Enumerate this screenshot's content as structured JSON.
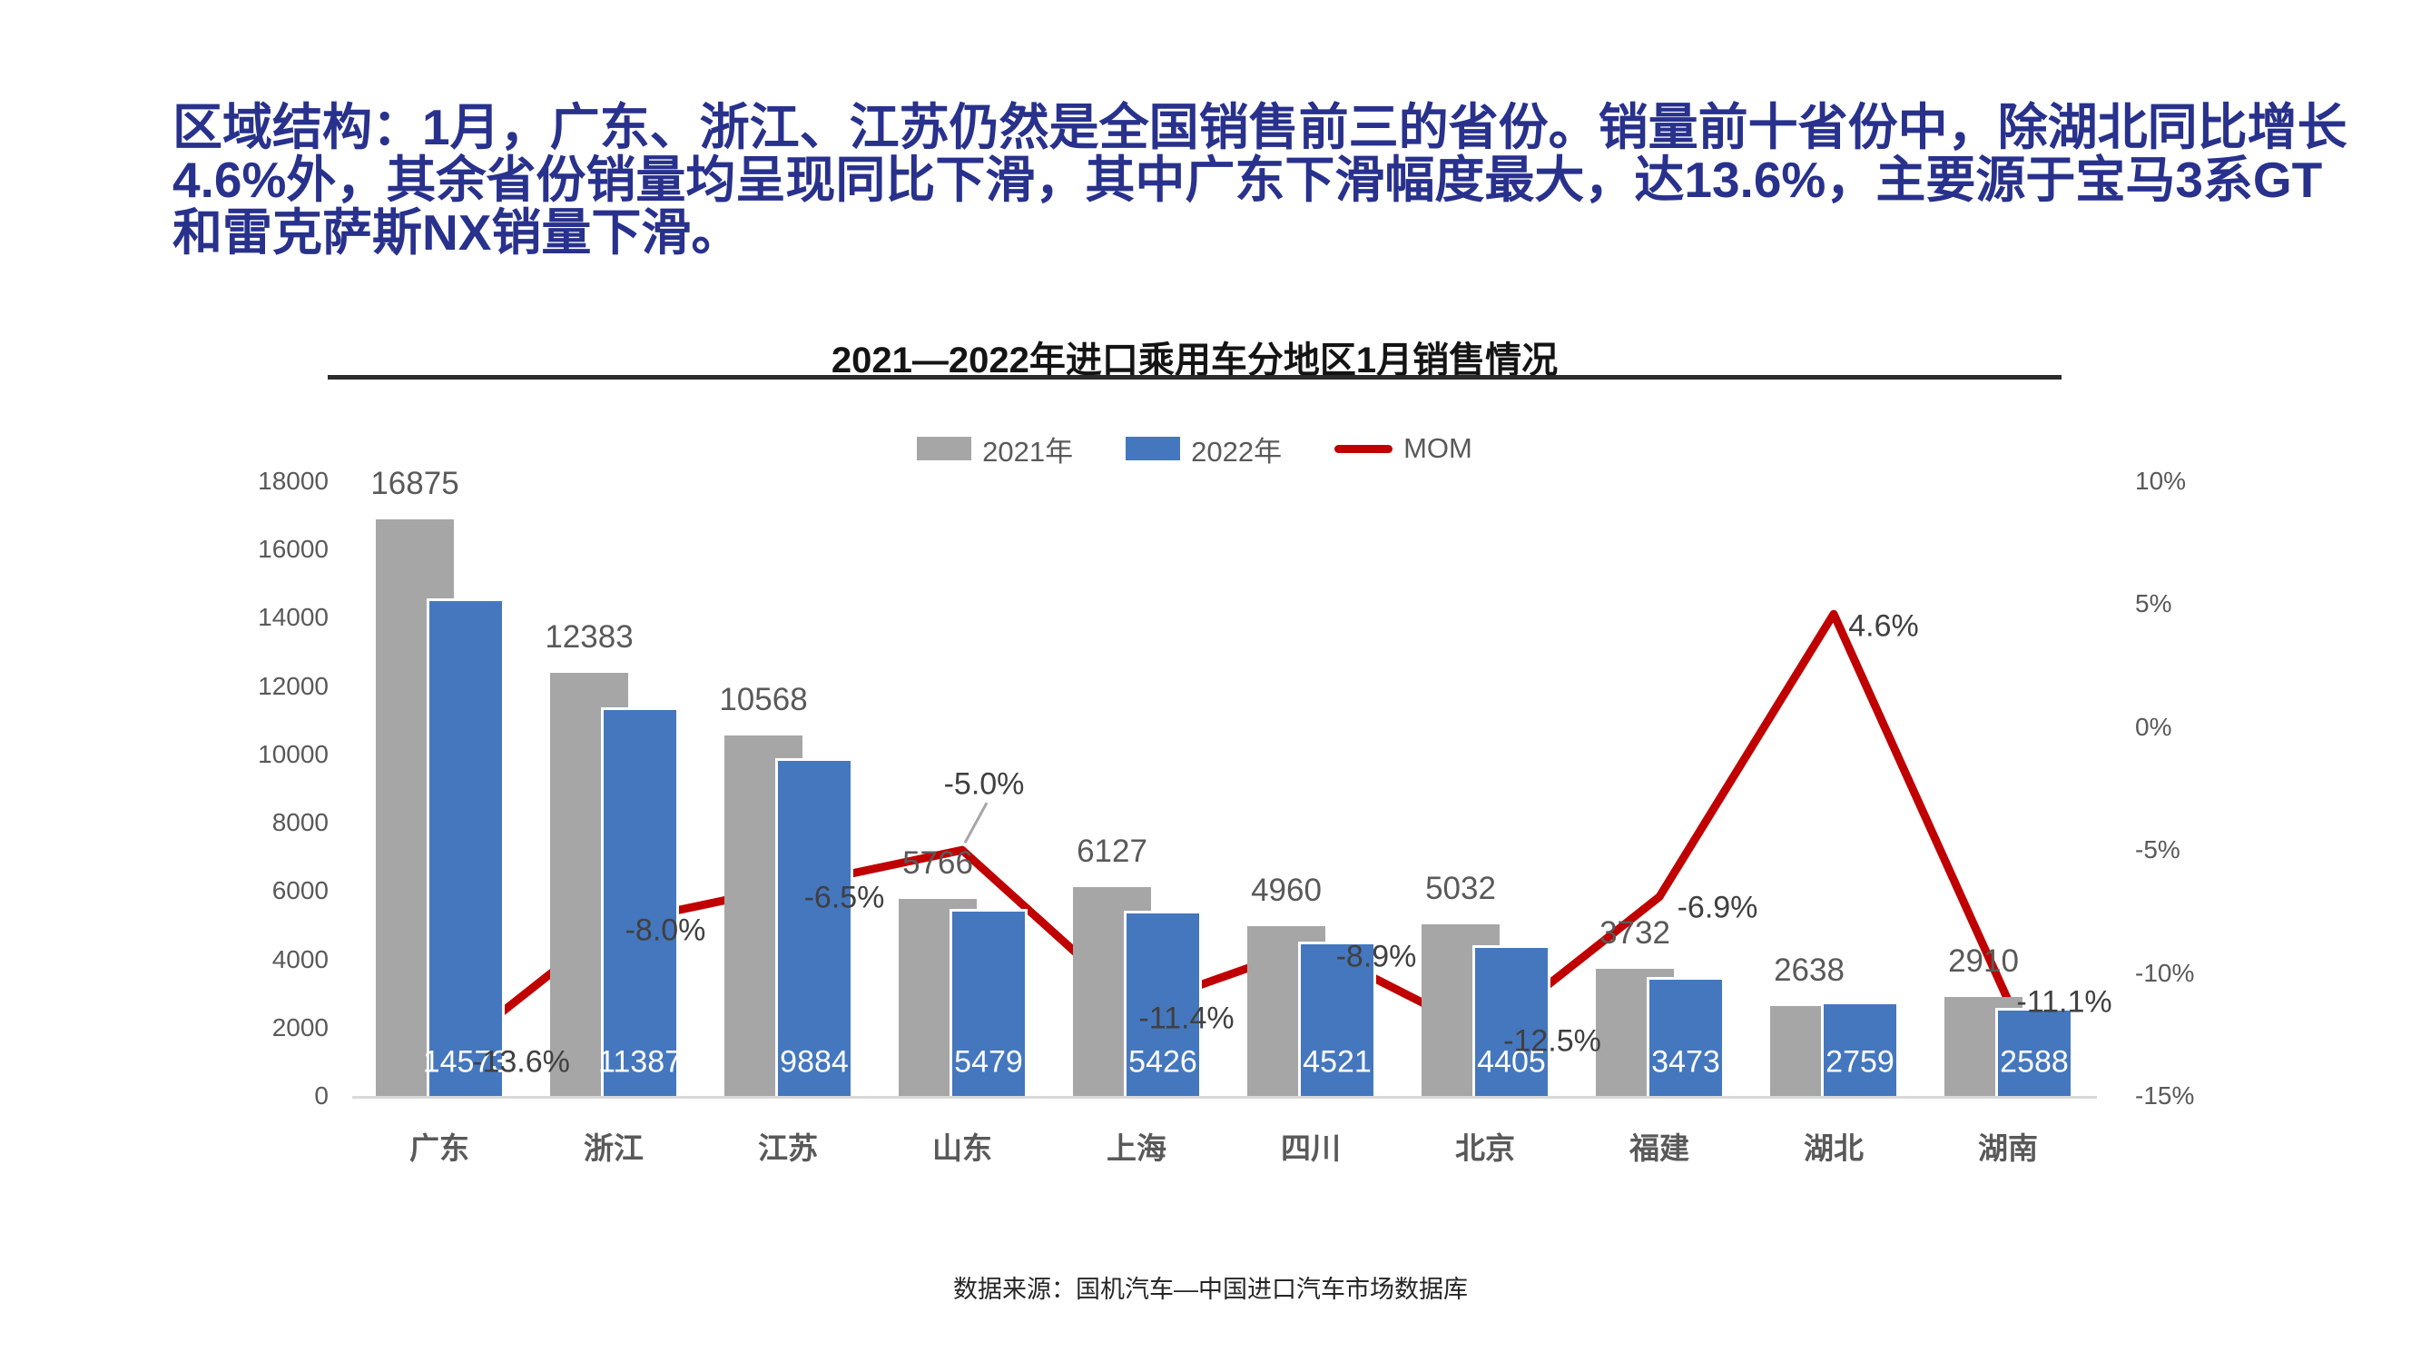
{
  "page": {
    "summary": "区域结构：1月，广东、浙江、江苏仍然是全国销售前三的省份。销量前十省份中，除湖北同比增长4.6%外，其余省份销量均呈现同比下滑，其中广东下滑幅度最大，达13.6%，主要源于宝马3系GT和雷克萨斯NX销量下滑。",
    "source_note": "数据来源：国机汽车—中国进口汽车市场数据库",
    "colors": {
      "heading_text": "#28318c",
      "bar_2021": "#a6a6a6",
      "bar_2022": "#4577be",
      "mom_line": "#c00000",
      "axis_text": "#595959",
      "mom_label_text": "#404040",
      "bar_label_white": "#ffffff",
      "axis_line": "#d9d9d9"
    }
  },
  "chart_data": {
    "type": "bar",
    "subtype": "grouped-bars-with-line-on-secondary-axis",
    "title": "2021—2022年进口乘用车分地区1月销售情况",
    "categories": [
      "广东",
      "浙江",
      "江苏",
      "山东",
      "上海",
      "四川",
      "北京",
      "福建",
      "湖北",
      "湖南"
    ],
    "series": [
      {
        "name": "2021年",
        "type": "bar",
        "color": "#a6a6a6",
        "values": [
          16875,
          12383,
          10568,
          5766,
          6127,
          4960,
          5032,
          3732,
          2638,
          2910
        ]
      },
      {
        "name": "2022年",
        "type": "bar",
        "color": "#4577be",
        "values": [
          14573,
          11387,
          9884,
          5479,
          5426,
          4521,
          4405,
          3473,
          2759,
          2588
        ]
      },
      {
        "name": "MOM",
        "type": "line",
        "axis": "right",
        "color": "#c00000",
        "values": [
          -13.6,
          -8.0,
          -6.5,
          -5.0,
          -11.4,
          -8.9,
          -12.5,
          -6.9,
          4.6,
          -11.1
        ],
        "labels": [
          "-13.6%",
          "-8.0%",
          "-6.5%",
          "-5.0%",
          "-11.4%",
          "-8.9%",
          "-12.5%",
          "-6.9%",
          "4.6%",
          "-11.1%"
        ]
      }
    ],
    "left_axis": {
      "min": 0,
      "max": 18000,
      "ticks": [
        "18000",
        "16000",
        "14000",
        "12000",
        "10000",
        "8000",
        "6000",
        "4000",
        "2000",
        "0"
      ]
    },
    "right_axis": {
      "min": -15,
      "max": 10,
      "ticks": [
        "10%",
        "5%",
        "0%",
        "-5%",
        "-10%",
        "-15%"
      ]
    },
    "legend": {
      "position": "top-center"
    },
    "grid": false,
    "label_styles": {
      "series_2021": "outside-end-gray",
      "series_2022": "inside-base-white",
      "mom": "beside-point"
    }
  }
}
